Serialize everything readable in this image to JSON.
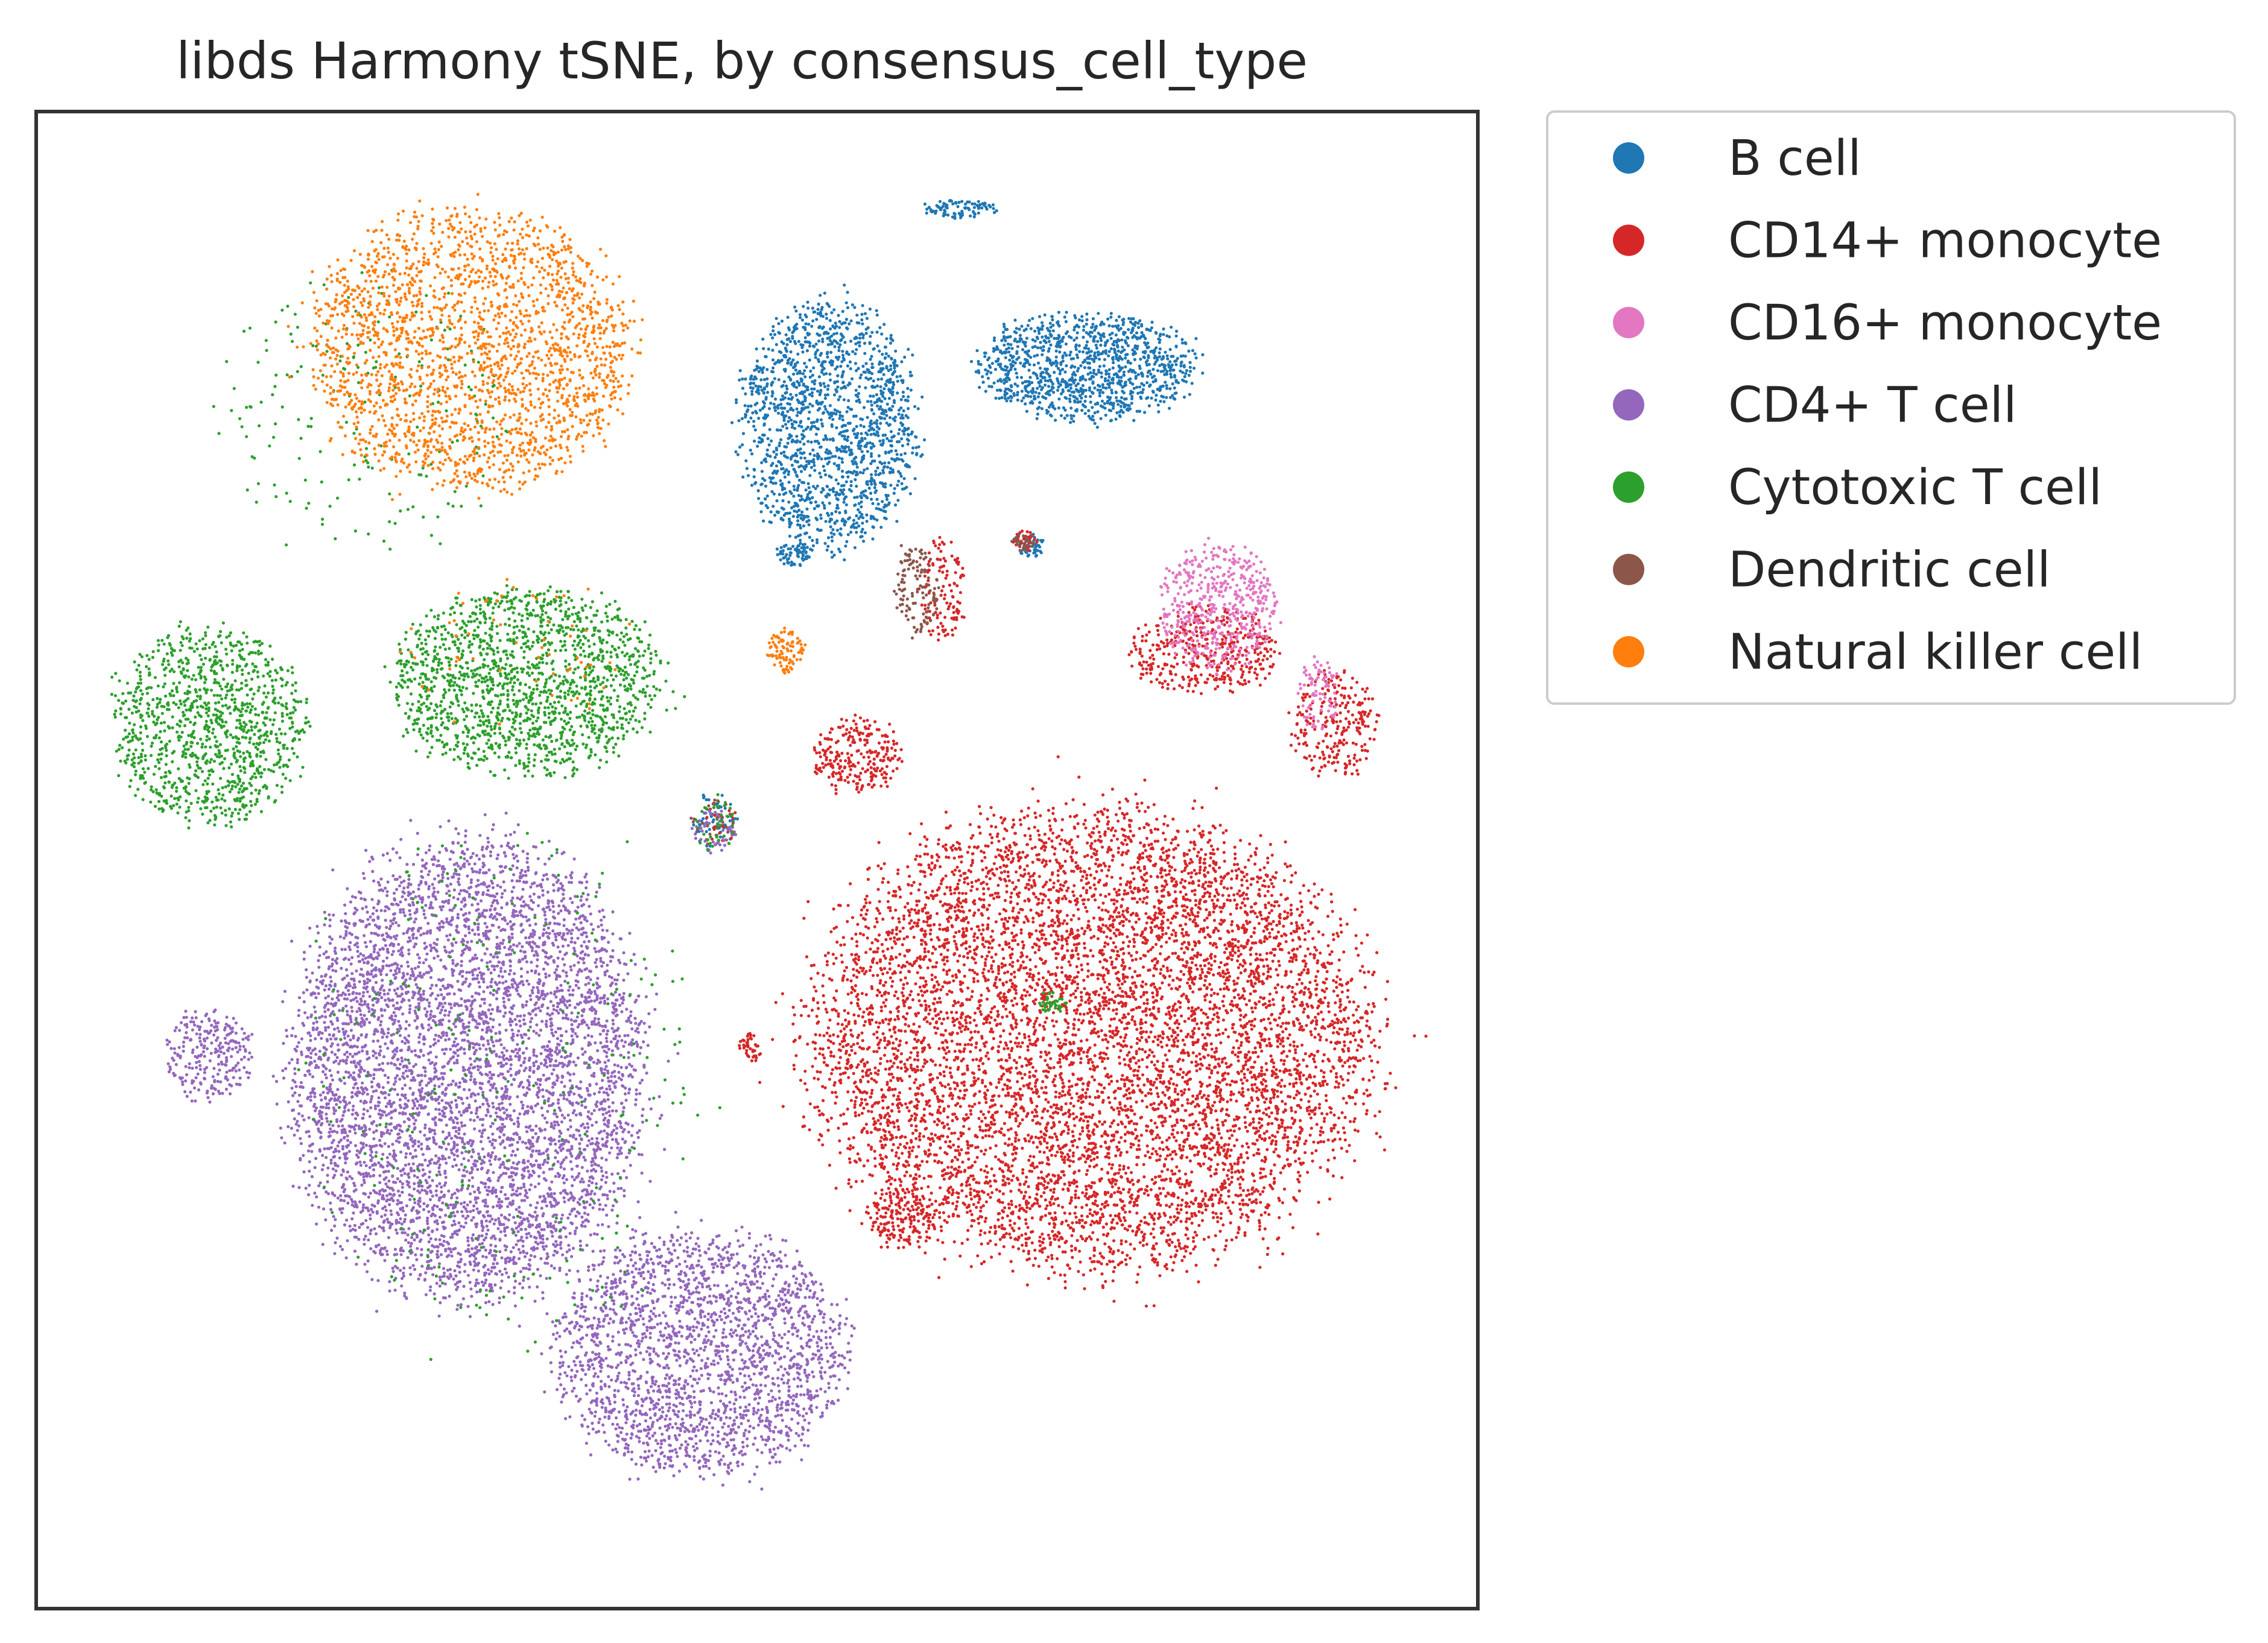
{
  "chart_data": {
    "type": "scatter",
    "title": "libds Harmony tSNE, by consensus_cell_type",
    "xlabel": "",
    "ylabel": "",
    "xlim": [
      0,
      100
    ],
    "ylim": [
      0,
      100
    ],
    "axis_ticks": false,
    "grid": false,
    "legend_position": "outside-right-top",
    "series": [
      {
        "name": "B cell",
        "color": "#1f77b4",
        "clusters": [
          {
            "cx": 55,
            "cy": 79,
            "rx": 6,
            "ry": 8,
            "n": 1600
          },
          {
            "cx": 73,
            "cy": 83,
            "rx": 7.5,
            "ry": 3.5,
            "n": 1100
          },
          {
            "cx": 64,
            "cy": 93.5,
            "rx": 2.5,
            "ry": 0.6,
            "n": 90
          },
          {
            "cx": 52.5,
            "cy": 70.5,
            "rx": 1.2,
            "ry": 0.9,
            "n": 70
          },
          {
            "cx": 69,
            "cy": 71,
            "rx": 1,
            "ry": 0.8,
            "n": 50
          },
          {
            "cx": 47,
            "cy": 52.5,
            "rx": 1.5,
            "ry": 2,
            "n": 60
          }
        ]
      },
      {
        "name": "CD14+ monocyte",
        "color": "#d62728",
        "clusters": [
          {
            "cx": 73,
            "cy": 38,
            "rx": 19,
            "ry": 15,
            "n": 7500
          },
          {
            "cx": 57,
            "cy": 57,
            "rx": 3,
            "ry": 2.5,
            "n": 250
          },
          {
            "cx": 60,
            "cy": 26,
            "rx": 2.5,
            "ry": 2,
            "n": 180
          },
          {
            "cx": 90,
            "cy": 59,
            "rx": 3,
            "ry": 3.5,
            "n": 250
          },
          {
            "cx": 81,
            "cy": 64,
            "rx": 5,
            "ry": 3,
            "n": 400
          },
          {
            "cx": 49.5,
            "cy": 37.5,
            "rx": 0.8,
            "ry": 1,
            "n": 40
          },
          {
            "cx": 63,
            "cy": 68,
            "rx": 1.5,
            "ry": 3.5,
            "n": 120
          },
          {
            "cx": 68.5,
            "cy": 71.3,
            "rx": 0.9,
            "ry": 0.7,
            "n": 30
          },
          {
            "cx": 47.5,
            "cy": 52.5,
            "rx": 1.2,
            "ry": 1.5,
            "n": 30
          }
        ]
      },
      {
        "name": "CD16+ monocyte",
        "color": "#e377c2",
        "clusters": [
          {
            "cx": 82,
            "cy": 67,
            "rx": 4,
            "ry": 4,
            "n": 500
          },
          {
            "cx": 89,
            "cy": 61,
            "rx": 1.5,
            "ry": 2.5,
            "n": 80
          }
        ]
      },
      {
        "name": "CD4+ T cell",
        "color": "#9467bd",
        "clusters": [
          {
            "cx": 30,
            "cy": 36,
            "rx": 12,
            "ry": 15,
            "n": 5500
          },
          {
            "cx": 46,
            "cy": 17,
            "rx": 10,
            "ry": 8,
            "n": 2200
          },
          {
            "cx": 12,
            "cy": 37,
            "rx": 3,
            "ry": 3,
            "n": 250
          },
          {
            "cx": 47,
            "cy": 52,
            "rx": 1.5,
            "ry": 1.5,
            "n": 50
          }
        ]
      },
      {
        "name": "Cytotoxic T cell",
        "color": "#2ca02c",
        "clusters": [
          {
            "cx": 34,
            "cy": 62,
            "rx": 9,
            "ry": 6,
            "n": 1600
          },
          {
            "cx": 12,
            "cy": 59,
            "rx": 6.5,
            "ry": 6.5,
            "n": 1100
          },
          {
            "cx": 23,
            "cy": 80,
            "rx": 10,
            "ry": 9,
            "n": 200
          },
          {
            "cx": 33,
            "cy": 35,
            "rx": 14,
            "ry": 17,
            "n": 250
          },
          {
            "cx": 70.5,
            "cy": 40.5,
            "rx": 1,
            "ry": 0.7,
            "n": 40
          },
          {
            "cx": 47,
            "cy": 52.5,
            "rx": 1.5,
            "ry": 2,
            "n": 40
          }
        ]
      },
      {
        "name": "Dendritic cell",
        "color": "#8c564b",
        "clusters": [
          {
            "cx": 61,
            "cy": 68,
            "rx": 1.5,
            "ry": 3,
            "n": 120
          },
          {
            "cx": 68.5,
            "cy": 71.3,
            "rx": 0.8,
            "ry": 0.6,
            "n": 30
          },
          {
            "cx": 47,
            "cy": 52.5,
            "rx": 1.5,
            "ry": 1.5,
            "n": 20
          }
        ]
      },
      {
        "name": "Natural killer cell",
        "color": "#ff7f0e",
        "clusters": [
          {
            "cx": 30,
            "cy": 84,
            "rx": 11,
            "ry": 9,
            "n": 2200
          },
          {
            "cx": 52,
            "cy": 64,
            "rx": 1.3,
            "ry": 1.5,
            "n": 90
          },
          {
            "cx": 33,
            "cy": 64,
            "rx": 8,
            "ry": 5,
            "n": 60
          }
        ]
      }
    ]
  }
}
